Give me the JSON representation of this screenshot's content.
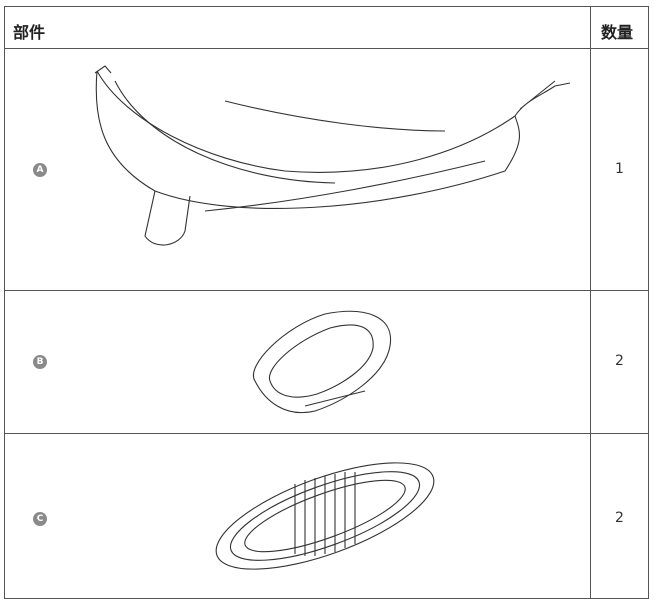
{
  "table": {
    "header": [
      "部件",
      "数量"
    ],
    "rows": [
      {
        "badge": "A",
        "quantity": "1"
      },
      {
        "badge": "B",
        "quantity": "2"
      },
      {
        "badge": "C",
        "quantity": "2"
      }
    ]
  }
}
